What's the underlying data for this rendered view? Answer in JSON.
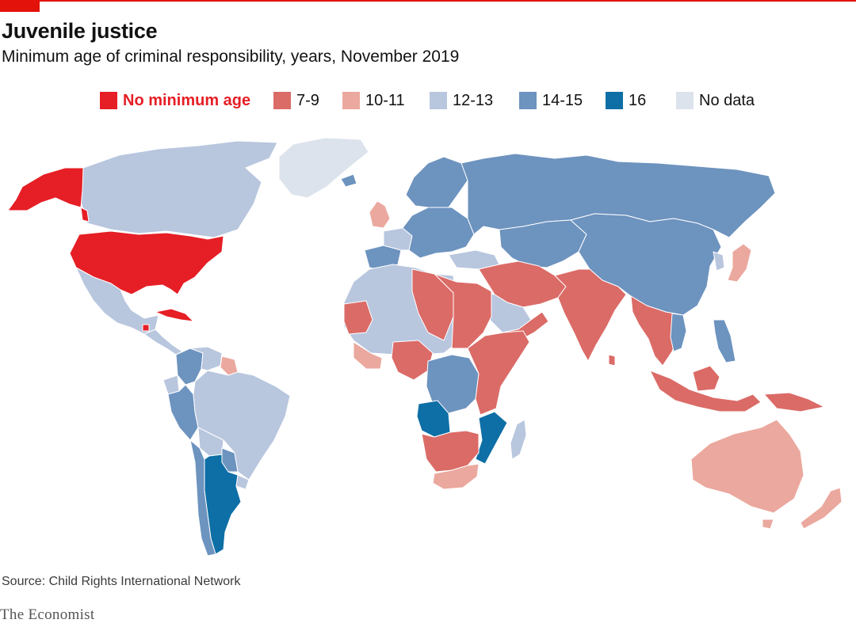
{
  "header": {
    "title": "Juvenile justice",
    "subtitle": "Minimum age of criminal responsibility, years, November 2019"
  },
  "colors": {
    "accent": "#e3120b",
    "no_minimum": "#e61e25",
    "age_7_9": "#db6b67",
    "age_10_11": "#eba89e",
    "age_12_13": "#b8c6de",
    "age_14_15": "#6d93bf",
    "age_16": "#0e6fa6",
    "no_data": "#dce3ec"
  },
  "legend": {
    "items": [
      {
        "label": "No minimum age",
        "color": "#e61e25",
        "emphasis": true
      },
      {
        "label": "7-9",
        "color": "#db6b67"
      },
      {
        "label": "10-11",
        "color": "#eba89e"
      },
      {
        "label": "12-13",
        "color": "#b8c6de"
      },
      {
        "label": "14-15",
        "color": "#6d93bf"
      },
      {
        "label": "16",
        "color": "#0e6fa6"
      },
      {
        "label": "No data",
        "color": "#dce3ec"
      }
    ]
  },
  "map": {
    "regions": [
      {
        "name": "Alaska",
        "category": "No minimum age"
      },
      {
        "name": "Canada",
        "category": "12-13"
      },
      {
        "name": "Greenland",
        "category": "No data"
      },
      {
        "name": "United States",
        "category": "No minimum age"
      },
      {
        "name": "Mexico",
        "category": "12-13"
      },
      {
        "name": "Central America",
        "category": "12-13"
      },
      {
        "name": "Cuba",
        "category": "No minimum age"
      },
      {
        "name": "Colombia",
        "category": "14-15"
      },
      {
        "name": "Venezuela",
        "category": "12-13"
      },
      {
        "name": "Guyana",
        "category": "10-11"
      },
      {
        "name": "Peru",
        "category": "14-15"
      },
      {
        "name": "Brazil",
        "category": "12-13"
      },
      {
        "name": "Bolivia",
        "category": "12-13"
      },
      {
        "name": "Paraguay",
        "category": "14-15"
      },
      {
        "name": "Argentina",
        "category": "16"
      },
      {
        "name": "Chile",
        "category": "14-15"
      },
      {
        "name": "Uruguay",
        "category": "12-13"
      },
      {
        "name": "Iceland",
        "category": "14-15"
      },
      {
        "name": "United Kingdom",
        "category": "10-11"
      },
      {
        "name": "Spain and Portugal",
        "category": "14-15"
      },
      {
        "name": "France",
        "category": "12-13"
      },
      {
        "name": "Western and central Europe",
        "category": "14-15"
      },
      {
        "name": "Scandinavia",
        "category": "14-15"
      },
      {
        "name": "Russia",
        "category": "14-15"
      },
      {
        "name": "Kazakhstan and Central Asia",
        "category": "14-15"
      },
      {
        "name": "China and Mongolia",
        "category": "14-15"
      },
      {
        "name": "Japan",
        "category": "10-11"
      },
      {
        "name": "Middle East and Iran",
        "category": "7-9"
      },
      {
        "name": "Saudi Arabia",
        "category": "12-13"
      },
      {
        "name": "Turkey",
        "category": "12-13"
      },
      {
        "name": "India",
        "category": "7-9"
      },
      {
        "name": "Southeast Asia",
        "category": "7-9"
      },
      {
        "name": "Philippines",
        "category": "14-15"
      },
      {
        "name": "Indonesia",
        "category": "7-9"
      },
      {
        "name": "Papua New Guinea",
        "category": "7-9"
      },
      {
        "name": "Australia",
        "category": "10-11"
      },
      {
        "name": "New Zealand",
        "category": "10-11"
      },
      {
        "name": "North-west Africa",
        "category": "12-13"
      },
      {
        "name": "Egypt and Sudan",
        "category": "7-9"
      },
      {
        "name": "West Africa",
        "category": "7-9"
      },
      {
        "name": "Central Africa",
        "category": "14-15"
      },
      {
        "name": "East Africa",
        "category": "7-9"
      },
      {
        "name": "Angola",
        "category": "16"
      },
      {
        "name": "Mozambique",
        "category": "16"
      },
      {
        "name": "Southern Africa",
        "category": "7-9"
      },
      {
        "name": "South Africa",
        "category": "10-11"
      },
      {
        "name": "Madagascar",
        "category": "12-13"
      }
    ]
  },
  "footer": {
    "source": "Source: Child Rights International Network",
    "brand": "The Economist"
  }
}
